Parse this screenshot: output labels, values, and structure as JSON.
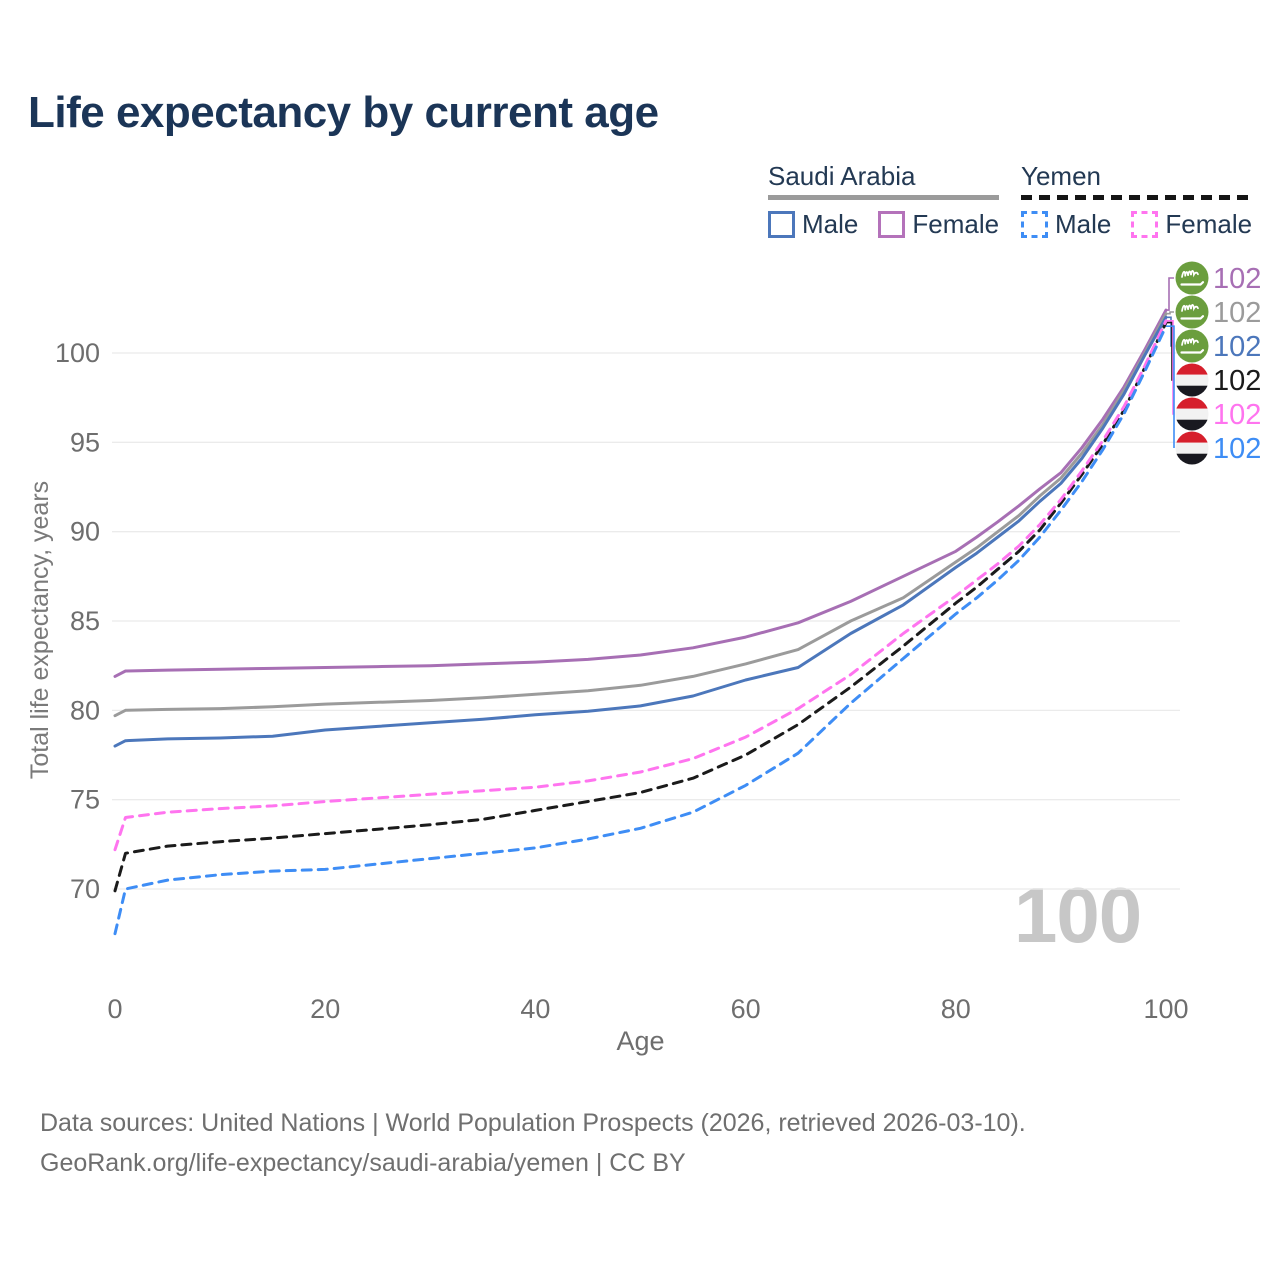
{
  "title": "Life expectancy by current age",
  "watermark_age": "100",
  "footer": {
    "line1": "Data sources: United Nations | World Population Prospects (2026, retrieved 2026-03-10).",
    "line2": "GeoRank.org/life-expectancy/saudi-arabia/yemen | CC BY"
  },
  "legend": {
    "groups": [
      {
        "country": "Saudi Arabia",
        "line_style": "solid",
        "underline_color": "#9b9b9b",
        "items": [
          {
            "label": "Male",
            "color": "#4c77bb",
            "dashed": false
          },
          {
            "label": "Female",
            "color": "#b472ba",
            "dashed": false
          }
        ]
      },
      {
        "country": "Yemen",
        "line_style": "dashed",
        "underline_color": "#151515",
        "items": [
          {
            "label": "Male",
            "color": "#3e8df5",
            "dashed": true
          },
          {
            "label": "Female",
            "color": "#ff74ef",
            "dashed": true
          }
        ]
      }
    ]
  },
  "chart_data": {
    "type": "line",
    "title": "Life expectancy by current age",
    "xlabel": "Age",
    "ylabel": "Total life expectancy, years",
    "xlim": [
      0,
      100
    ],
    "ylim": [
      66.5,
      103
    ],
    "x_ticks": [
      0,
      20,
      40,
      60,
      80,
      100
    ],
    "y_ticks": [
      70,
      75,
      80,
      85,
      90,
      95,
      100
    ],
    "grid": "horizontal",
    "tick_color": "#6e6e6e",
    "grid_color": "#ebebeb",
    "ages": [
      0,
      1,
      5,
      10,
      15,
      20,
      25,
      30,
      35,
      40,
      45,
      50,
      55,
      60,
      65,
      70,
      75,
      80,
      82,
      84,
      86,
      88,
      90,
      92,
      94,
      96,
      98,
      100
    ],
    "series": [
      {
        "name": "Saudi Arabia Female",
        "country": "Saudi Arabia",
        "gender": "Female",
        "color": "#a76fb4",
        "dashed": false,
        "flag": "saudi-arabia",
        "end_label": "102",
        "values": [
          81.9,
          82.2,
          82.25,
          82.3,
          82.35,
          82.4,
          82.45,
          82.5,
          82.6,
          82.7,
          82.85,
          83.1,
          83.5,
          84.1,
          84.9,
          86.1,
          87.5,
          88.9,
          89.7,
          90.55,
          91.45,
          92.4,
          93.3,
          94.7,
          96.3,
          98.1,
          100.2,
          102.4
        ]
      },
      {
        "name": "Saudi Arabia All",
        "country": "Saudi Arabia",
        "gender": "All",
        "color": "#9b9b9b",
        "dashed": false,
        "flag": "saudi-arabia",
        "end_label": "102",
        "values": [
          79.7,
          80.0,
          80.05,
          80.1,
          80.2,
          80.35,
          80.45,
          80.55,
          80.7,
          80.9,
          81.1,
          81.4,
          81.9,
          82.6,
          83.4,
          85.0,
          86.3,
          88.3,
          89.1,
          90.0,
          90.9,
          92.0,
          93.0,
          94.4,
          96.0,
          97.9,
          100.0,
          102.2
        ]
      },
      {
        "name": "Saudi Arabia Male",
        "country": "Saudi Arabia",
        "gender": "Male",
        "color": "#4c77bb",
        "dashed": false,
        "flag": "saudi-arabia",
        "end_label": "102",
        "values": [
          78.0,
          78.3,
          78.4,
          78.45,
          78.55,
          78.9,
          79.1,
          79.3,
          79.5,
          79.75,
          79.95,
          80.25,
          80.8,
          81.7,
          82.4,
          84.3,
          85.9,
          88.0,
          88.8,
          89.7,
          90.6,
          91.7,
          92.7,
          94.1,
          95.8,
          97.7,
          99.9,
          102.0
        ]
      },
      {
        "name": "Yemen All",
        "country": "Yemen",
        "gender": "All",
        "color": "#1b1b1b",
        "dashed": true,
        "flag": "yemen",
        "end_label": "102",
        "values": [
          69.9,
          72.0,
          72.4,
          72.65,
          72.85,
          73.1,
          73.35,
          73.6,
          73.9,
          74.4,
          74.9,
          75.4,
          76.2,
          77.5,
          79.2,
          81.3,
          83.6,
          86.0,
          86.9,
          87.9,
          88.9,
          90.1,
          91.6,
          93.2,
          94.9,
          96.8,
          99.2,
          101.7
        ]
      },
      {
        "name": "Yemen Female",
        "country": "Yemen",
        "gender": "Female",
        "color": "#ff74ef",
        "dashed": true,
        "flag": "yemen",
        "end_label": "102",
        "values": [
          72.2,
          74.0,
          74.3,
          74.5,
          74.65,
          74.9,
          75.1,
          75.3,
          75.5,
          75.7,
          76.05,
          76.55,
          77.3,
          78.5,
          80.1,
          82.0,
          84.3,
          86.4,
          87.3,
          88.2,
          89.2,
          90.4,
          91.8,
          93.4,
          95.1,
          97.0,
          99.3,
          101.8
        ]
      },
      {
        "name": "Yemen Male",
        "country": "Yemen",
        "gender": "Male",
        "color": "#3e8df5",
        "dashed": true,
        "flag": "yemen",
        "end_label": "102",
        "values": [
          67.5,
          70.0,
          70.5,
          70.8,
          71.0,
          71.1,
          71.4,
          71.7,
          72.0,
          72.3,
          72.8,
          73.4,
          74.3,
          75.8,
          77.6,
          80.4,
          82.9,
          85.4,
          86.3,
          87.3,
          88.4,
          89.7,
          91.2,
          92.8,
          94.6,
          96.6,
          99.0,
          101.5
        ]
      }
    ]
  }
}
